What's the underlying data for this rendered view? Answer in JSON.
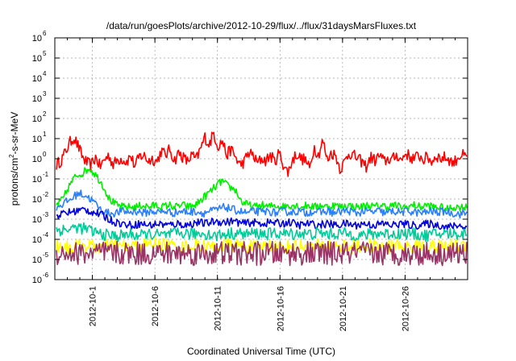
{
  "chart_data": {
    "type": "line",
    "title": "/data/run/goesPlots/archive/2012-10-29/flux/../flux/31daysMarsFluxes.txt",
    "xlabel": "Coordinated Universal Time (UTC)",
    "ylabel": {
      "base": "protons/cm",
      "exp": "2",
      "rest": "-s-sr-MeV"
    },
    "yscale": "log",
    "ylim": [
      1e-06,
      1000000.0
    ],
    "xlim": [
      "2012-09-28",
      "2012-10-31"
    ],
    "grid": true,
    "ytick_base": "10",
    "yticks": [
      "-6",
      "-5",
      "-4",
      "-3",
      "-2",
      "-1",
      "0",
      "1",
      "2",
      "3",
      "4",
      "5",
      "6"
    ],
    "xticks": [
      "2012-10-1",
      "2012-10-6",
      "2012-10-11",
      "2012-10-16",
      "2012-10-21",
      "2012-10-26"
    ],
    "series": [
      {
        "color": "#ff0000",
        "noise": 0.3,
        "values": [
          0.5,
          0.8,
          2,
          6,
          12,
          4,
          1.2,
          0.6,
          0.5,
          1.2,
          0.4,
          0.9,
          1.5,
          0.5,
          0.9,
          1,
          0.7,
          1.4,
          0.4,
          1.3,
          1.5,
          0.8,
          1,
          0.7,
          2.5,
          1.5,
          3,
          0.8,
          2,
          1.2,
          0.7,
          1.5,
          0.9,
          3,
          12,
          5,
          20,
          4,
          8,
          1.5,
          3,
          1.2,
          0.5,
          0.7,
          2,
          1.5,
          0.6,
          1,
          0.8,
          1.5,
          0.7,
          2,
          0.5,
          0.2,
          0.8,
          1.8,
          1,
          0.9,
          0.3,
          4,
          1.5,
          8,
          0.9,
          2,
          1.4,
          0.3,
          0.7,
          2,
          1.5,
          1,
          0.7,
          0.4,
          1.2,
          0.8,
          1.5,
          0.7,
          1,
          0.9,
          1.6,
          0.8,
          2,
          1.2,
          1,
          1.5,
          0.9,
          1.2,
          0.7,
          1.5,
          1,
          1.2,
          0.9,
          0.6,
          1.3,
          1.5,
          1
        ]
      },
      {
        "color": "#00ee00",
        "noise": 0.2,
        "values": [
          0.005,
          0.01,
          0.05,
          0.15,
          0.2,
          0.35,
          0.15,
          0.05,
          0.01,
          0.005,
          0.004,
          0.004,
          0.004,
          0.005,
          0.004,
          0.005,
          0.004,
          0.005,
          0.004,
          0.005,
          0.004,
          0.005,
          0.01,
          0.02,
          0.04,
          0.08,
          0.04,
          0.03,
          0.007,
          0.005,
          0.004,
          0.005,
          0.004,
          0.005,
          0.004,
          0.005,
          0.005,
          0.004,
          0.005,
          0.004,
          0.005,
          0.004,
          0.005,
          0.004,
          0.005,
          0.004,
          0.004,
          0.005,
          0.004,
          0.005,
          0.004,
          0.005,
          0.004,
          0.004,
          0.005,
          0.004,
          0.005,
          0.004,
          0.004,
          0.003,
          0.004,
          0.004,
          0.004
        ]
      },
      {
        "color": "#2a7fff",
        "noise": 0.2,
        "values": [
          0.004,
          0.006,
          0.01,
          0.02,
          0.015,
          0.008,
          0.003,
          0.002,
          0.002,
          0.0025,
          0.0022,
          0.0025,
          0.002,
          0.0025,
          0.0022,
          0.0025,
          0.002,
          0.0025,
          0.0022,
          0.0025,
          0.002,
          0.0025,
          0.003,
          0.004,
          0.003,
          0.0025,
          0.002,
          0.0025,
          0.0022,
          0.0025,
          0.002,
          0.0025,
          0.0022,
          0.0025,
          0.002,
          0.0025,
          0.0022,
          0.0025,
          0.002,
          0.0025,
          0.0025,
          0.002,
          0.0025,
          0.0022,
          0.0025,
          0.002,
          0.0025,
          0.0022,
          0.0025,
          0.0022,
          0.002,
          0.0025,
          0.0022,
          0.0025,
          0.002,
          0.0018,
          0.002
        ]
      },
      {
        "color": "#0000dd",
        "noise": 0.2,
        "values": [
          0.0015,
          0.002,
          0.0025,
          0.003,
          0.0022,
          0.0015,
          0.0008,
          0.0006,
          0.0005,
          0.0006,
          0.0005,
          0.0006,
          0.0005,
          0.0006,
          0.0005,
          0.0007,
          0.0006,
          0.0008,
          0.0007,
          0.0008,
          0.0006,
          0.0007,
          0.0006,
          0.0007,
          0.0006,
          0.0007,
          0.0005,
          0.0006,
          0.0005,
          0.0006,
          0.0005,
          0.0006,
          0.0005,
          0.0006,
          0.0005,
          0.0006,
          0.0005,
          0.0006,
          0.0005,
          0.0005,
          0.0006,
          0.0005,
          0.0004,
          0.0005,
          0.0004
        ]
      },
      {
        "color": "#00cc99",
        "noise": 0.3,
        "values": [
          0.0003,
          0.0003,
          0.0004,
          0.0003,
          0.0002,
          0.00015,
          0.00015,
          0.00018,
          0.00015,
          0.00018,
          0.00015,
          0.00018,
          0.0002,
          0.00018,
          0.0002,
          0.00015,
          0.00018,
          0.0002,
          0.00018,
          0.0002,
          0.00018,
          0.0002,
          0.00018,
          0.0002,
          0.00018,
          0.0002,
          0.00018,
          0.0002,
          0.00018,
          0.00015,
          0.00018,
          0.0002,
          0.00018,
          0.0002,
          0.00018,
          0.00015,
          0.00018,
          0.0002,
          0.00018,
          0.0002
        ]
      },
      {
        "color": "#ffff00",
        "noise": 0.35,
        "values": [
          5e-05,
          4e-05,
          5e-05,
          4e-05,
          5e-05,
          4e-05,
          5e-05,
          6e-05,
          5e-05,
          4e-05,
          5e-05,
          4e-05,
          5e-05,
          5e-05,
          4e-05,
          5e-05,
          4e-05,
          5e-05,
          4e-05,
          5e-05,
          5e-05,
          4e-05,
          5e-05,
          4e-05,
          5e-05,
          4e-05,
          5e-05,
          4e-05,
          5e-05,
          5e-05
        ]
      },
      {
        "color": "#993366",
        "noise": 0.6,
        "values": [
          2e-05,
          2e-05,
          2e-05,
          2e-05,
          2e-05,
          2e-05,
          2e-05,
          2e-05,
          2e-05,
          2e-05
        ]
      }
    ]
  }
}
